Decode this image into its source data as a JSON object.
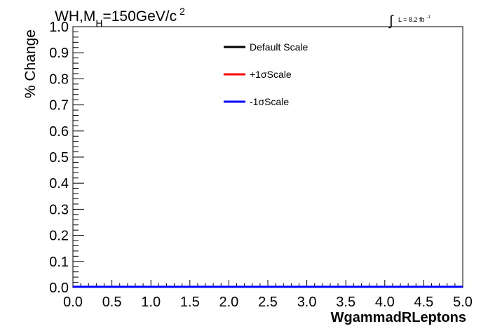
{
  "chart_data": {
    "type": "line",
    "header": {
      "process_main": "WH,M",
      "process_sub": "H",
      "process_rest": "=150GeV/c",
      "process_sup": "2",
      "lumi_symbol": "∫",
      "lumi_text": "L = 8.2 fb",
      "lumi_sup": "-1"
    },
    "xlabel": "WgammadRLeptons",
    "ylabel": "% Change",
    "xlim": [
      0.0,
      5.0
    ],
    "ylim": [
      0.0,
      1.0
    ],
    "x_ticks": [
      "0.0",
      "0.5",
      "1.0",
      "1.5",
      "2.0",
      "2.5",
      "3.0",
      "3.5",
      "4.0",
      "4.5",
      "5.0"
    ],
    "y_ticks": [
      "0.0",
      "0.1",
      "0.2",
      "0.3",
      "0.4",
      "0.5",
      "0.6",
      "0.7",
      "0.8",
      "0.9",
      "1.0"
    ],
    "grid": false,
    "legend_position": "top-center",
    "series": [
      {
        "name": "Default Scale",
        "color": "#000000",
        "x": [
          0.0,
          5.0
        ],
        "values": [
          0.0,
          0.0
        ]
      },
      {
        "name": "+1σScale",
        "color": "#ff0000",
        "x": [
          0.0,
          5.0
        ],
        "values": [
          0.0,
          0.0
        ]
      },
      {
        "name": "-1σScale",
        "color": "#0000ff",
        "x": [
          0.0,
          5.0
        ],
        "values": [
          0.0,
          0.0
        ]
      }
    ]
  }
}
